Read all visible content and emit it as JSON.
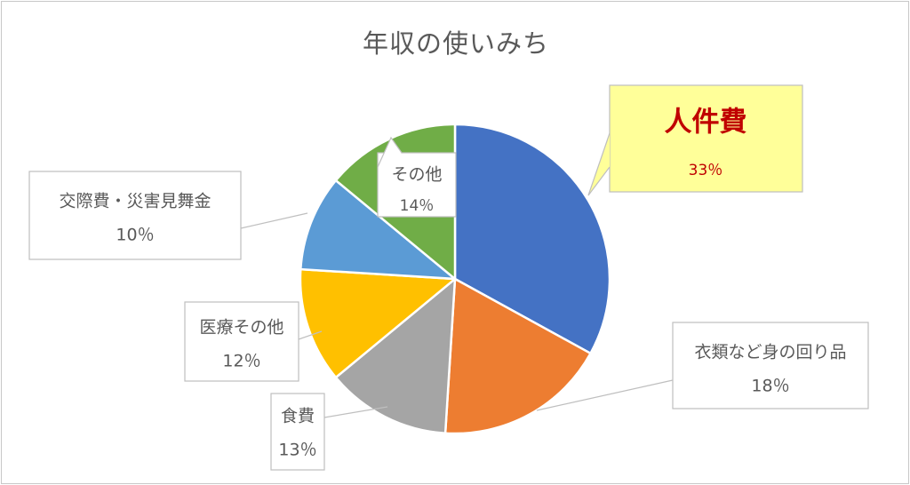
{
  "chart_data": {
    "type": "pie",
    "title": "年収の使いみち",
    "slices": [
      {
        "label": "人件費",
        "value": 33,
        "display": "33％",
        "color": "#4472c4"
      },
      {
        "label": "衣類など身の回り品",
        "value": 18,
        "display": "18％",
        "color": "#ed7d31"
      },
      {
        "label": "食費",
        "value": 13,
        "display": "13％",
        "color": "#a5a5a5"
      },
      {
        "label": "医療その他",
        "value": 12,
        "display": "12％",
        "color": "#ffc000"
      },
      {
        "label": "交際費・災害見舞金",
        "value": 10,
        "display": "10％",
        "color": "#5b9bd5"
      },
      {
        "label": "その他",
        "value": 14,
        "display": "14％",
        "color": "#70ad47"
      }
    ],
    "highlight": {
      "label_color": "#c00000",
      "callout_fill": "#ffff99"
    },
    "legend": "none"
  }
}
